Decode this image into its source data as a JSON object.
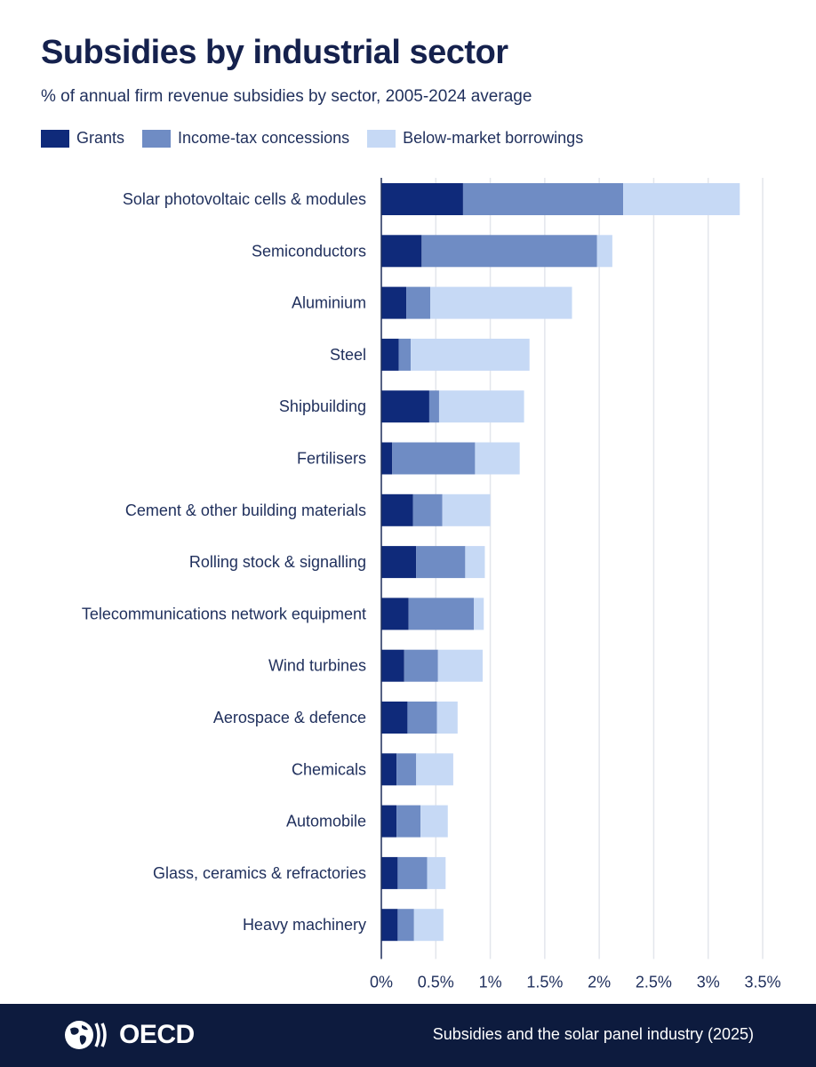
{
  "chart_data": {
    "type": "bar",
    "orientation": "horizontal",
    "stacked": true,
    "title": "Subsidies by industrial sector",
    "subtitle": "% of annual firm revenue subsidies by sector, 2005-2024 average",
    "categories": [
      "Solar photovoltaic cells & modules",
      "Semiconductors",
      "Aluminium",
      "Steel",
      "Shipbuilding",
      "Fertilisers",
      "Cement & other building materials",
      "Rolling stock & signalling",
      "Telecommunications network equipment",
      "Wind turbines",
      "Aerospace & defence",
      "Chemicals",
      "Automobile",
      "Glass, ceramics & refractories",
      "Heavy machinery"
    ],
    "series": [
      {
        "name": "Grants",
        "color": "#0f2a7a",
        "values": [
          0.75,
          0.37,
          0.23,
          0.16,
          0.44,
          0.1,
          0.29,
          0.32,
          0.25,
          0.21,
          0.24,
          0.14,
          0.14,
          0.15,
          0.15
        ]
      },
      {
        "name": "Income-tax concessions",
        "color": "#6f8cc4",
        "values": [
          1.47,
          1.61,
          0.22,
          0.11,
          0.09,
          0.76,
          0.27,
          0.45,
          0.6,
          0.31,
          0.27,
          0.18,
          0.22,
          0.27,
          0.15
        ]
      },
      {
        "name": "Below-market borrowings",
        "color": "#c6d9f5",
        "values": [
          1.07,
          0.14,
          1.3,
          1.09,
          0.78,
          0.41,
          0.44,
          0.18,
          0.09,
          0.41,
          0.19,
          0.34,
          0.25,
          0.17,
          0.27
        ]
      }
    ],
    "xlim": [
      0,
      3.5
    ],
    "xticks": [
      "0%",
      "0.5%",
      "1%",
      "1.5%",
      "2%",
      "2.5%",
      "3%",
      "3.5%"
    ],
    "xlabel": "",
    "ylabel": "",
    "grid": true,
    "legend_position": "top-left"
  },
  "footer": {
    "logo_text": "OECD",
    "source": "Subsidies and the solar panel industry (2025)"
  }
}
